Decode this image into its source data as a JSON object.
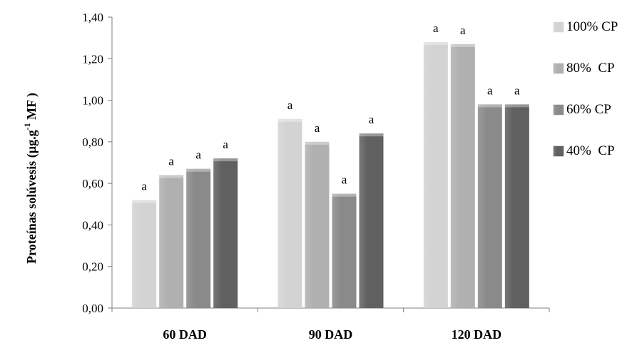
{
  "chart_data": {
    "type": "bar",
    "categories": [
      "60 DAD",
      "90 DAD",
      "120 DAD"
    ],
    "series": [
      {
        "name": "100% CP",
        "color": "#d3d3d3",
        "values": [
          0.52,
          0.91,
          1.28
        ],
        "labels": [
          "a",
          "a",
          "a"
        ]
      },
      {
        "name": "80%  CP",
        "color": "#b0b0b0",
        "values": [
          0.64,
          0.8,
          1.27
        ],
        "labels": [
          "a",
          "a",
          "a"
        ]
      },
      {
        "name": "60% CP",
        "color": "#8a8a8a",
        "values": [
          0.67,
          0.55,
          0.98
        ],
        "labels": [
          "a",
          "a",
          "a"
        ]
      },
      {
        "name": "40%  CP",
        "color": "#606060",
        "values": [
          0.72,
          0.84,
          0.98
        ],
        "labels": [
          "a",
          "a",
          "a"
        ]
      }
    ],
    "ylabel": {
      "main": "Proteínas solúvesis (µg.g",
      "superscript": "-1",
      "suffix": " MF )"
    },
    "ylim": [
      0,
      1.4
    ],
    "yticks": [
      "0,00",
      "0,20",
      "0,40",
      "0,60",
      "0,80",
      "1,00",
      "1,20",
      "1,40"
    ],
    "grid": false,
    "legend_position": "right"
  }
}
